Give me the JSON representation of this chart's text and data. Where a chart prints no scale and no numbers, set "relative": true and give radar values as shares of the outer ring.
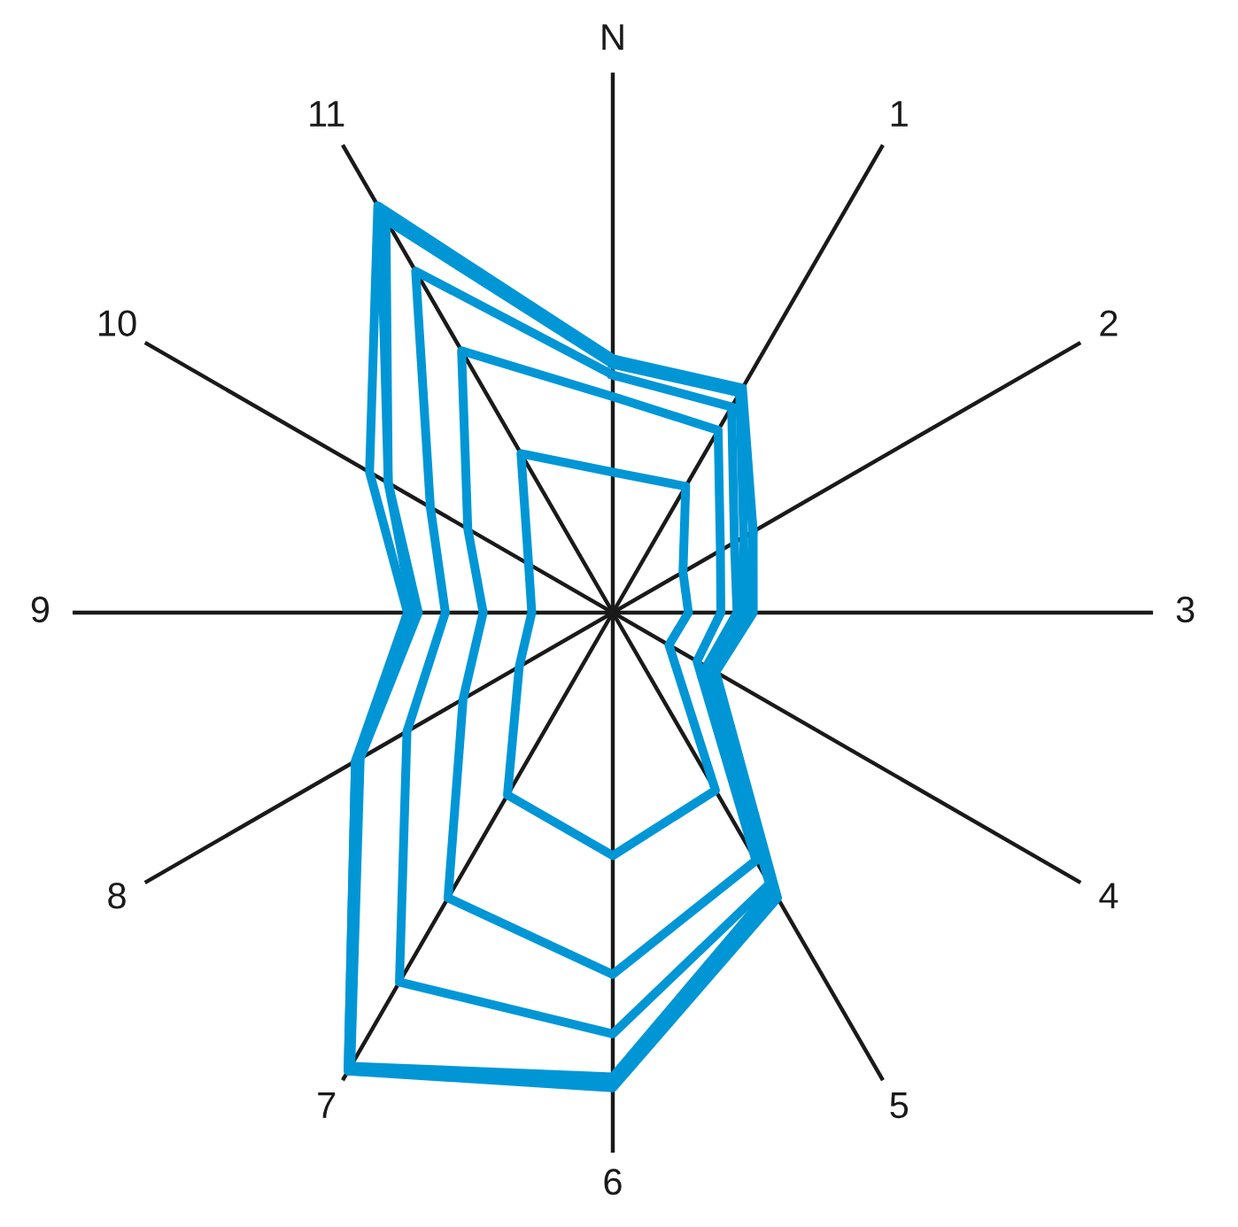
{
  "chart_data": {
    "type": "radar",
    "relative": true,
    "categories": [
      "N",
      "1",
      "2",
      "3",
      "4",
      "5",
      "6",
      "7",
      "8",
      "9",
      "10",
      "11"
    ],
    "series": [
      {
        "color": "#0096d6",
        "values": [
          0.26,
          0.27,
          0.15,
          0.14,
          0.12,
          0.38,
          0.45,
          0.39,
          0.2,
          0.15,
          0.18,
          0.34
        ]
      },
      {
        "color": "#0096d6",
        "values": [
          0.4,
          0.39,
          0.23,
          0.2,
          0.18,
          0.53,
          0.67,
          0.61,
          0.32,
          0.24,
          0.31,
          0.56
        ]
      },
      {
        "color": "#0096d6",
        "values": [
          0.44,
          0.44,
          0.26,
          0.23,
          0.2,
          0.58,
          0.78,
          0.79,
          0.44,
          0.31,
          0.39,
          0.73
        ]
      },
      {
        "color": "#0096d6",
        "values": [
          0.46,
          0.47,
          0.28,
          0.24,
          0.21,
          0.59,
          0.86,
          0.97,
          0.54,
          0.36,
          0.48,
          0.84
        ]
      },
      {
        "color": "#0096d6",
        "values": [
          0.47,
          0.47,
          0.3,
          0.25,
          0.21,
          0.6,
          0.87,
          0.98,
          0.55,
          0.37,
          0.48,
          0.86
        ]
      },
      {
        "color": "#0096d6",
        "values": [
          0.47,
          0.48,
          0.3,
          0.26,
          0.22,
          0.61,
          0.88,
          0.98,
          0.55,
          0.38,
          0.52,
          0.87
        ]
      }
    ]
  }
}
